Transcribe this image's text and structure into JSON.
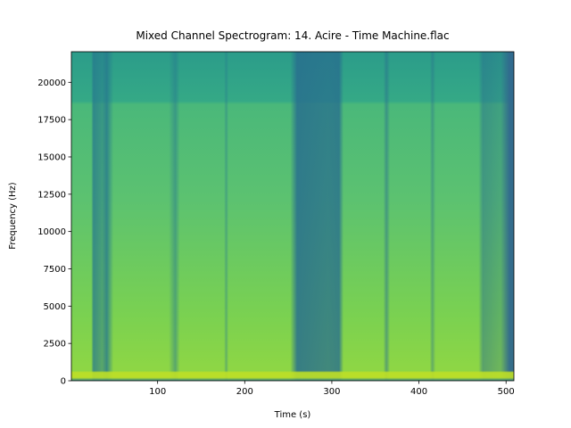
{
  "chart_data": {
    "type": "spectrogram",
    "title": "Mixed Channel Spectrogram: 14. Acire - Time Machine.flac",
    "x_label": "Time (s)",
    "y_label": "Frequency (Hz)",
    "xlim": [
      1,
      509
    ],
    "xticks": [
      100,
      200,
      300,
      400,
      500
    ],
    "ylim": [
      0,
      22050
    ],
    "yticks": [
      0,
      2500,
      5000,
      7500,
      10000,
      12500,
      15000,
      17500,
      20000
    ]
  }
}
